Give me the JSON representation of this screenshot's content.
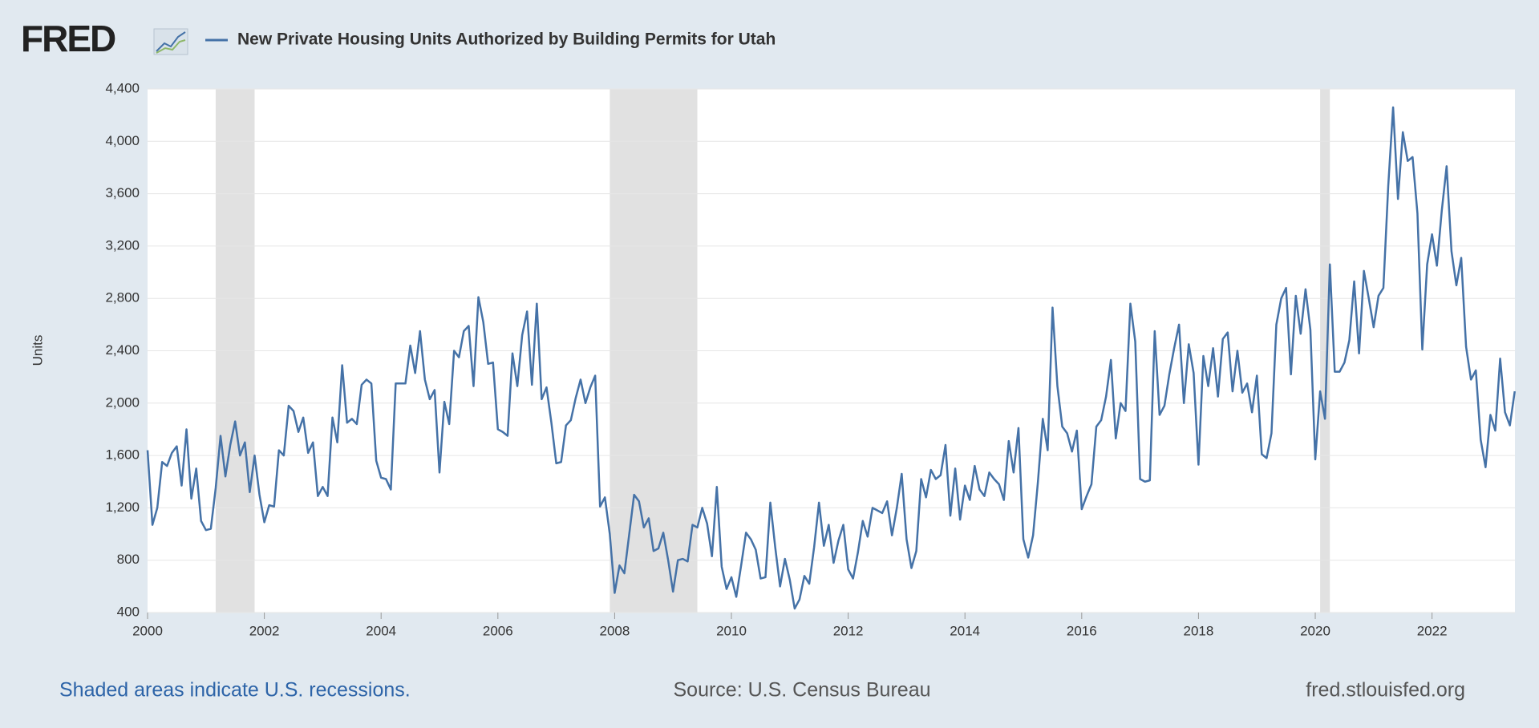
{
  "logo": "FRED",
  "chart_data": {
    "type": "line",
    "title": "New Private Housing Units Authorized by Building Permits for Utah",
    "ylabel": "Units",
    "note": "Shaded areas indicate U.S. recessions.",
    "source": "Source: U.S. Census Bureau",
    "site": "fred.stlouisfed.org",
    "recessions": [
      [
        "2001-03",
        "2001-11"
      ],
      [
        "2007-12",
        "2009-06"
      ],
      [
        "2020-02",
        "2020-04"
      ]
    ],
    "xlim": [
      2000,
      2023.42
    ],
    "xticks": [
      2000,
      2002,
      2004,
      2006,
      2008,
      2010,
      2012,
      2014,
      2016,
      2018,
      2020,
      2022
    ],
    "ylim": [
      400,
      4400
    ],
    "yticks": [
      400,
      800,
      {
        "value": 1200,
        "label": "1,200"
      },
      {
        "value": 1600,
        "label": "1,600"
      },
      {
        "value": 2000,
        "label": "2,000"
      },
      {
        "value": 2400,
        "label": "2,400"
      },
      {
        "value": 2800,
        "label": "2,800"
      },
      {
        "value": 3200,
        "label": "3,200"
      },
      {
        "value": 3600,
        "label": "3,600"
      },
      {
        "value": 4000,
        "label": "4,000"
      },
      {
        "value": 4400,
        "label": "4,400"
      }
    ],
    "grid": true,
    "x": [
      "2000-01",
      "2000-02",
      "2000-03",
      "2000-04",
      "2000-05",
      "2000-06",
      "2000-07",
      "2000-08",
      "2000-09",
      "2000-10",
      "2000-11",
      "2000-12",
      "2001-01",
      "2001-02",
      "2001-03",
      "2001-04",
      "2001-05",
      "2001-06",
      "2001-07",
      "2001-08",
      "2001-09",
      "2001-10",
      "2001-11",
      "2001-12",
      "2002-01",
      "2002-02",
      "2002-03",
      "2002-04",
      "2002-05",
      "2002-06",
      "2002-07",
      "2002-08",
      "2002-09",
      "2002-10",
      "2002-11",
      "2002-12",
      "2003-01",
      "2003-02",
      "2003-03",
      "2003-04",
      "2003-05",
      "2003-06",
      "2003-07",
      "2003-08",
      "2003-09",
      "2003-10",
      "2003-11",
      "2003-12",
      "2004-01",
      "2004-02",
      "2004-03",
      "2004-04",
      "2004-05",
      "2004-06",
      "2004-07",
      "2004-08",
      "2004-09",
      "2004-10",
      "2004-11",
      "2004-12",
      "2005-01",
      "2005-02",
      "2005-03",
      "2005-04",
      "2005-05",
      "2005-06",
      "2005-07",
      "2005-08",
      "2005-09",
      "2005-10",
      "2005-11",
      "2005-12",
      "2006-01",
      "2006-02",
      "2006-03",
      "2006-04",
      "2006-05",
      "2006-06",
      "2006-07",
      "2006-08",
      "2006-09",
      "2006-10",
      "2006-11",
      "2006-12",
      "2007-01",
      "2007-02",
      "2007-03",
      "2007-04",
      "2007-05",
      "2007-06",
      "2007-07",
      "2007-08",
      "2007-09",
      "2007-10",
      "2007-11",
      "2007-12",
      "2008-01",
      "2008-02",
      "2008-03",
      "2008-04",
      "2008-05",
      "2008-06",
      "2008-07",
      "2008-08",
      "2008-09",
      "2008-10",
      "2008-11",
      "2008-12",
      "2009-01",
      "2009-02",
      "2009-03",
      "2009-04",
      "2009-05",
      "2009-06",
      "2009-07",
      "2009-08",
      "2009-09",
      "2009-10",
      "2009-11",
      "2009-12",
      "2010-01",
      "2010-02",
      "2010-03",
      "2010-04",
      "2010-05",
      "2010-06",
      "2010-07",
      "2010-08",
      "2010-09",
      "2010-10",
      "2010-11",
      "2010-12",
      "2011-01",
      "2011-02",
      "2011-03",
      "2011-04",
      "2011-05",
      "2011-06",
      "2011-07",
      "2011-08",
      "2011-09",
      "2011-10",
      "2011-11",
      "2011-12",
      "2012-01",
      "2012-02",
      "2012-03",
      "2012-04",
      "2012-05",
      "2012-06",
      "2012-07",
      "2012-08",
      "2012-09",
      "2012-10",
      "2012-11",
      "2012-12",
      "2013-01",
      "2013-02",
      "2013-03",
      "2013-04",
      "2013-05",
      "2013-06",
      "2013-07",
      "2013-08",
      "2013-09",
      "2013-10",
      "2013-11",
      "2013-12",
      "2014-01",
      "2014-02",
      "2014-03",
      "2014-04",
      "2014-05",
      "2014-06",
      "2014-07",
      "2014-08",
      "2014-09",
      "2014-10",
      "2014-11",
      "2014-12",
      "2015-01",
      "2015-02",
      "2015-03",
      "2015-04",
      "2015-05",
      "2015-06",
      "2015-07",
      "2015-08",
      "2015-09",
      "2015-10",
      "2015-11",
      "2015-12",
      "2016-01",
      "2016-02",
      "2016-03",
      "2016-04",
      "2016-05",
      "2016-06",
      "2016-07",
      "2016-08",
      "2016-09",
      "2016-10",
      "2016-11",
      "2016-12",
      "2017-01",
      "2017-02",
      "2017-03",
      "2017-04",
      "2017-05",
      "2017-06",
      "2017-07",
      "2017-08",
      "2017-09",
      "2017-10",
      "2017-11",
      "2017-12",
      "2018-01",
      "2018-02",
      "2018-03",
      "2018-04",
      "2018-05",
      "2018-06",
      "2018-07",
      "2018-08",
      "2018-09",
      "2018-10",
      "2018-11",
      "2018-12",
      "2019-01",
      "2019-02",
      "2019-03",
      "2019-04",
      "2019-05",
      "2019-06",
      "2019-07",
      "2019-08",
      "2019-09",
      "2019-10",
      "2019-11",
      "2019-12",
      "2020-01",
      "2020-02",
      "2020-03",
      "2020-04",
      "2020-05",
      "2020-06",
      "2020-07",
      "2020-08",
      "2020-09",
      "2020-10",
      "2020-11",
      "2020-12",
      "2021-01",
      "2021-02",
      "2021-03",
      "2021-04",
      "2021-05",
      "2021-06",
      "2021-07",
      "2021-08",
      "2021-09",
      "2021-10",
      "2021-11",
      "2021-12",
      "2022-01",
      "2022-02",
      "2022-03",
      "2022-04",
      "2022-05",
      "2022-06",
      "2022-07",
      "2022-08",
      "2022-09",
      "2022-10",
      "2022-11",
      "2022-12",
      "2023-01",
      "2023-02",
      "2023-03",
      "2023-04",
      "2023-05",
      "2023-06"
    ],
    "series": [
      {
        "name": "New Private Housing Units Authorized by Building Permits for Utah",
        "color": "#4572a7",
        "values": [
          1640,
          1070,
          1200,
          1550,
          1520,
          1620,
          1670,
          1370,
          1800,
          1270,
          1500,
          1100,
          1030,
          1040,
          1350,
          1750,
          1440,
          1680,
          1860,
          1600,
          1700,
          1320,
          1600,
          1300,
          1090,
          1220,
          1210,
          1640,
          1600,
          1980,
          1940,
          1780,
          1890,
          1620,
          1700,
          1290,
          1360,
          1290,
          1890,
          1700,
          2290,
          1850,
          1880,
          1840,
          2140,
          2180,
          2150,
          1560,
          1430,
          1420,
          1340,
          2150,
          2150,
          2150,
          2440,
          2230,
          2550,
          2180,
          2030,
          2100,
          1470,
          2010,
          1840,
          2400,
          2350,
          2550,
          2590,
          2130,
          2810,
          2620,
          2300,
          2310,
          1800,
          1780,
          1750,
          2380,
          2130,
          2520,
          2700,
          2140,
          2760,
          2030,
          2120,
          1850,
          1540,
          1550,
          1830,
          1870,
          2040,
          2180,
          2000,
          2120,
          2210,
          1210,
          1280,
          1000,
          550,
          760,
          700,
          1000,
          1300,
          1250,
          1050,
          1120,
          870,
          890,
          1010,
          800,
          560,
          800,
          810,
          790,
          1070,
          1050,
          1200,
          1080,
          830,
          1360,
          750,
          580,
          670,
          520,
          760,
          1010,
          960,
          880,
          660,
          670,
          1240,
          900,
          600,
          810,
          650,
          430,
          500,
          680,
          620,
          900,
          1240,
          910,
          1070,
          780,
          950,
          1070,
          730,
          660,
          860,
          1100,
          980,
          1200,
          1180,
          1160,
          1250,
          990,
          1200,
          1460,
          960,
          740,
          870,
          1420,
          1280,
          1490,
          1420,
          1450,
          1680,
          1140,
          1500,
          1110,
          1370,
          1260,
          1520,
          1340,
          1290,
          1470,
          1420,
          1380,
          1260,
          1710,
          1470,
          1810,
          960,
          820,
          990,
          1400,
          1880,
          1640,
          2730,
          2130,
          1820,
          1770,
          1630,
          1790,
          1190,
          1290,
          1380,
          1820,
          1870,
          2050,
          2330,
          1730,
          2000,
          1940,
          2760,
          2470,
          1420,
          1400,
          1410,
          2550,
          1910,
          1980,
          2220,
          2420,
          2600,
          2000,
          2450,
          2230,
          1530,
          2360,
          2130,
          2420,
          2050,
          2490,
          2540,
          2090,
          2400,
          2080,
          2150,
          1930,
          2210,
          1610,
          1580,
          1770,
          2600,
          2800,
          2880,
          2220,
          2820,
          2530,
          2870,
          2560,
          1570,
          2090,
          1880,
          3060,
          2240,
          2240,
          2310,
          2480,
          2930,
          2380,
          3010,
          2800,
          2580,
          2820,
          2880,
          3660,
          4260,
          3560,
          4070,
          3850,
          3880,
          3450,
          2410,
          3060,
          3290,
          3050,
          3470,
          3810,
          3160,
          2900,
          3110,
          2430,
          2180,
          2250,
          1720,
          1510,
          1910,
          1790,
          2340,
          1930,
          1830,
          2090
        ]
      }
    ]
  }
}
